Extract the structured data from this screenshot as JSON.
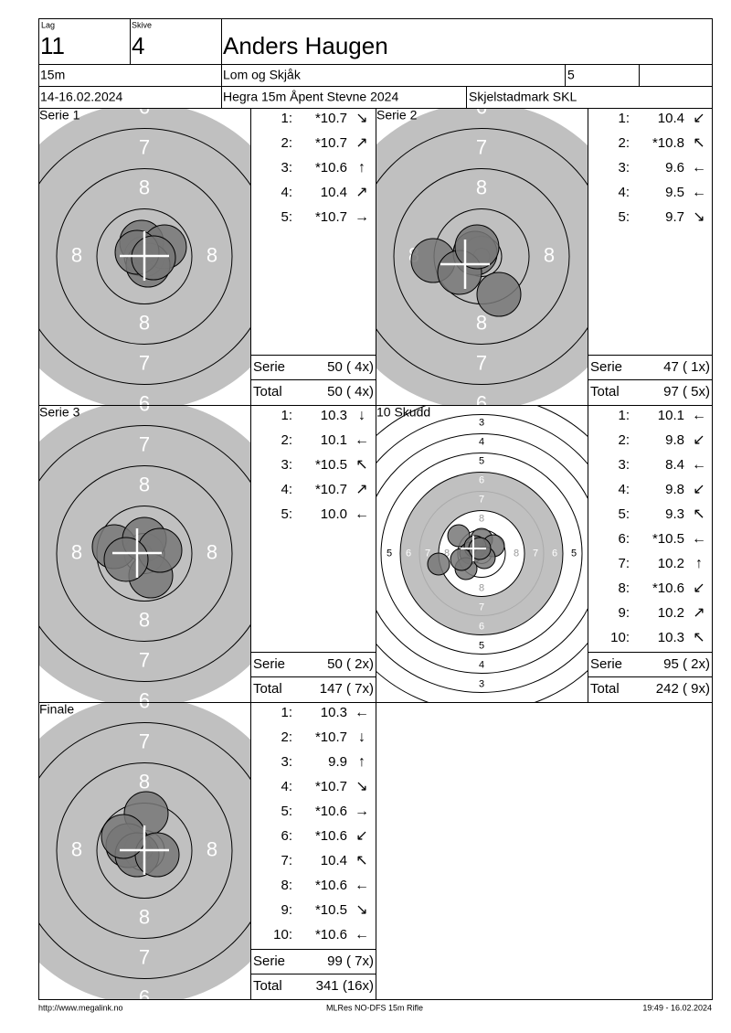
{
  "header": {
    "lag_label": "Lag",
    "lag": "11",
    "skive_label": "Skive",
    "skive": "4",
    "name": "Anders Haugen",
    "distance": "15m",
    "club": "Lom og Skjåk",
    "field": "5",
    "date": "14-16.02.2024",
    "event": "Hegra 15m Åpent Stevne 2024",
    "organizer": "Skjelstadmark SKL"
  },
  "targets": {
    "small": [
      "6",
      "7",
      "8"
    ],
    "large": [
      "3",
      "4",
      "5",
      "6",
      "7",
      "8"
    ]
  },
  "panels": [
    {
      "title": "Serie 1",
      "shots": [
        {
          "no": "1:",
          "score": "*10.7",
          "dir": "↘"
        },
        {
          "no": "2:",
          "score": "*10.7",
          "dir": "↗"
        },
        {
          "no": "3:",
          "score": "*10.6",
          "dir": "↑"
        },
        {
          "no": "4:",
          "score": "10.4",
          "dir": "↗"
        },
        {
          "no": "5:",
          "score": "*10.7",
          "dir": "→"
        }
      ],
      "serie_label": "Serie",
      "serie": "50 ( 4x)",
      "total_label": "Total",
      "total": "50 ( 4x)"
    },
    {
      "title": "Serie 2",
      "shots": [
        {
          "no": "1:",
          "score": "10.4",
          "dir": "↙"
        },
        {
          "no": "2:",
          "score": "*10.8",
          "dir": "↖"
        },
        {
          "no": "3:",
          "score": "9.6",
          "dir": "←"
        },
        {
          "no": "4:",
          "score": "9.5",
          "dir": "←"
        },
        {
          "no": "5:",
          "score": "9.7",
          "dir": "↘"
        }
      ],
      "serie_label": "Serie",
      "serie": "47 ( 1x)",
      "total_label": "Total",
      "total": "97 ( 5x)"
    },
    {
      "title": "Serie 3",
      "shots": [
        {
          "no": "1:",
          "score": "10.3",
          "dir": "↓"
        },
        {
          "no": "2:",
          "score": "10.1",
          "dir": "←"
        },
        {
          "no": "3:",
          "score": "*10.5",
          "dir": "↖"
        },
        {
          "no": "4:",
          "score": "*10.7",
          "dir": "↗"
        },
        {
          "no": "5:",
          "score": "10.0",
          "dir": "←"
        }
      ],
      "serie_label": "Serie",
      "serie": "50 ( 2x)",
      "total_label": "Total",
      "total": "147 ( 7x)"
    },
    {
      "title": "10 Skudd",
      "shots": [
        {
          "no": "1:",
          "score": "10.1",
          "dir": "←"
        },
        {
          "no": "2:",
          "score": "9.8",
          "dir": "↙"
        },
        {
          "no": "3:",
          "score": "8.4",
          "dir": "←"
        },
        {
          "no": "4:",
          "score": "9.8",
          "dir": "↙"
        },
        {
          "no": "5:",
          "score": "9.3",
          "dir": "↖"
        },
        {
          "no": "6:",
          "score": "*10.5",
          "dir": "←"
        },
        {
          "no": "7:",
          "score": "10.2",
          "dir": "↑"
        },
        {
          "no": "8:",
          "score": "*10.6",
          "dir": "↙"
        },
        {
          "no": "9:",
          "score": "10.2",
          "dir": "↗"
        },
        {
          "no": "10:",
          "score": "10.3",
          "dir": "↖"
        }
      ],
      "serie_label": "Serie",
      "serie": "95 ( 2x)",
      "total_label": "Total",
      "total": "242 ( 9x)"
    },
    {
      "title": "Finale",
      "shots": [
        {
          "no": "1:",
          "score": "10.3",
          "dir": "←"
        },
        {
          "no": "2:",
          "score": "*10.7",
          "dir": "↓"
        },
        {
          "no": "3:",
          "score": "9.9",
          "dir": "↑"
        },
        {
          "no": "4:",
          "score": "*10.7",
          "dir": "↘"
        },
        {
          "no": "5:",
          "score": "*10.6",
          "dir": "→"
        },
        {
          "no": "6:",
          "score": "*10.6",
          "dir": "↙"
        },
        {
          "no": "7:",
          "score": "10.4",
          "dir": "↖"
        },
        {
          "no": "8:",
          "score": "*10.6",
          "dir": "←"
        },
        {
          "no": "9:",
          "score": "*10.5",
          "dir": "↘"
        },
        {
          "no": "10:",
          "score": "*10.6",
          "dir": "←"
        }
      ],
      "serie_label": "Serie",
      "serie": "99 ( 7x)",
      "total_label": "Total",
      "total": "341 (16x)"
    }
  ],
  "footer": {
    "url": "http://www.megalink.no",
    "program": "MLRes NO-DFS 15m Rifle",
    "timestamp": "19:49 - 16.02.2024"
  }
}
